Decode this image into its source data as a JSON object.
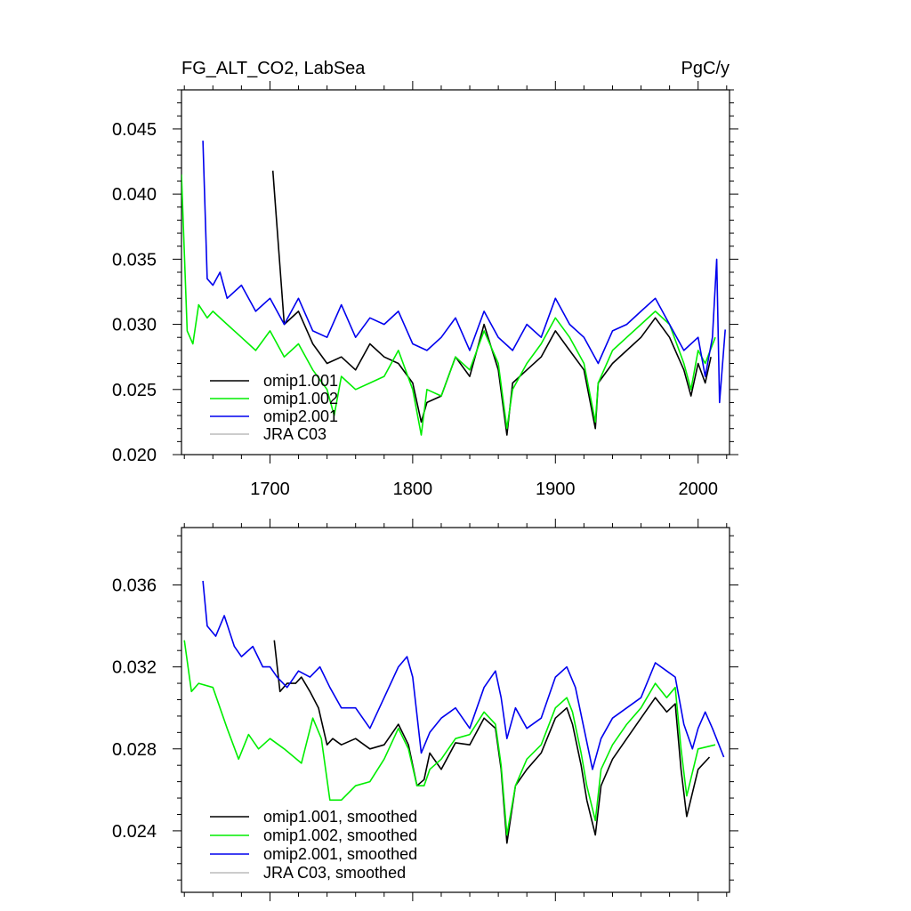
{
  "chart_data": [
    {
      "type": "line",
      "title": "FG_ALT_CO2, LabSea",
      "units": "PgC/y",
      "xlabel": "",
      "ylabel": "",
      "xlim": [
        1638,
        2022
      ],
      "ylim": [
        0.02,
        0.048
      ],
      "x_ticks": [
        1700,
        1800,
        1900,
        2000
      ],
      "y_ticks": [
        0.02,
        0.025,
        0.03,
        0.035,
        0.04,
        0.045
      ],
      "y_tick_labels": [
        "0.020",
        "0.025",
        "0.030",
        "0.035",
        "0.040",
        "0.045"
      ],
      "legend_position": "bottom-left",
      "series": [
        {
          "name": "omip1.001",
          "color": "#000000",
          "x": [
            1702,
            1710,
            1720,
            1730,
            1740,
            1750,
            1760,
            1770,
            1780,
            1790,
            1800,
            1806,
            1810,
            1820,
            1830,
            1840,
            1850,
            1860,
            1866,
            1870,
            1880,
            1890,
            1900,
            1910,
            1920,
            1928,
            1930,
            1940,
            1950,
            1960,
            1970,
            1980,
            1990,
            1995,
            2000,
            2005,
            2009
          ],
          "values": [
            0.0418,
            0.03,
            0.031,
            0.0285,
            0.027,
            0.0275,
            0.0265,
            0.0285,
            0.0275,
            0.027,
            0.0255,
            0.0225,
            0.024,
            0.0245,
            0.0275,
            0.026,
            0.03,
            0.0265,
            0.0215,
            0.0255,
            0.0265,
            0.0275,
            0.0295,
            0.028,
            0.0265,
            0.022,
            0.0255,
            0.027,
            0.028,
            0.029,
            0.0305,
            0.029,
            0.0265,
            0.0245,
            0.027,
            0.0255,
            0.0275
          ]
        },
        {
          "name": "omip1.002",
          "color": "#00ee00",
          "x": [
            1638,
            1642,
            1646,
            1650,
            1656,
            1660,
            1670,
            1680,
            1690,
            1700,
            1710,
            1720,
            1730,
            1740,
            1745,
            1750,
            1760,
            1770,
            1780,
            1790,
            1800,
            1806,
            1810,
            1820,
            1830,
            1840,
            1850,
            1860,
            1866,
            1870,
            1880,
            1890,
            1900,
            1910,
            1920,
            1928,
            1930,
            1940,
            1950,
            1960,
            1970,
            1980,
            1990,
            1995,
            2000,
            2005,
            2012
          ],
          "values": [
            0.0415,
            0.0295,
            0.0285,
            0.0315,
            0.0305,
            0.031,
            0.03,
            0.029,
            0.028,
            0.0295,
            0.0275,
            0.0285,
            0.0265,
            0.025,
            0.023,
            0.026,
            0.025,
            0.0255,
            0.026,
            0.028,
            0.025,
            0.0215,
            0.025,
            0.0245,
            0.0275,
            0.0265,
            0.0295,
            0.027,
            0.022,
            0.025,
            0.027,
            0.0285,
            0.0305,
            0.029,
            0.027,
            0.0225,
            0.0255,
            0.028,
            0.029,
            0.03,
            0.031,
            0.03,
            0.027,
            0.025,
            0.028,
            0.027,
            0.029
          ]
        },
        {
          "name": "omip2.001",
          "color": "#0000ee",
          "x": [
            1653,
            1656,
            1660,
            1665,
            1670,
            1680,
            1690,
            1700,
            1710,
            1720,
            1730,
            1740,
            1750,
            1760,
            1770,
            1780,
            1790,
            1800,
            1810,
            1820,
            1830,
            1840,
            1850,
            1860,
            1870,
            1880,
            1890,
            1900,
            1910,
            1920,
            1930,
            1940,
            1950,
            1960,
            1970,
            1980,
            1990,
            2000,
            2005,
            2010,
            2013,
            2015,
            2019
          ],
          "values": [
            0.0441,
            0.0335,
            0.033,
            0.034,
            0.032,
            0.033,
            0.031,
            0.032,
            0.03,
            0.032,
            0.0295,
            0.029,
            0.0315,
            0.029,
            0.0305,
            0.03,
            0.031,
            0.0285,
            0.028,
            0.029,
            0.0305,
            0.028,
            0.031,
            0.029,
            0.028,
            0.03,
            0.029,
            0.032,
            0.03,
            0.029,
            0.027,
            0.0295,
            0.03,
            0.031,
            0.032,
            0.03,
            0.028,
            0.029,
            0.026,
            0.029,
            0.035,
            0.024,
            0.0296
          ]
        },
        {
          "name": "JRA C03",
          "color": "#bbbbbb",
          "x": [],
          "values": []
        }
      ]
    },
    {
      "type": "line",
      "title": "",
      "units": "",
      "xlabel": "",
      "ylabel": "",
      "xlim": [
        1638,
        2022
      ],
      "ylim": [
        0.021,
        0.0388
      ],
      "x_ticks": [
        1700,
        1800,
        1900,
        2000
      ],
      "y_ticks": [
        0.024,
        0.028,
        0.032,
        0.036
      ],
      "y_tick_labels": [
        "0.024",
        "0.028",
        "0.032",
        "0.036"
      ],
      "legend_position": "bottom-left",
      "series": [
        {
          "name": "omip1.001, smoothed",
          "color": "#000000",
          "x": [
            1703,
            1707,
            1712,
            1718,
            1722,
            1728,
            1734,
            1740,
            1744,
            1750,
            1760,
            1770,
            1780,
            1790,
            1797,
            1803,
            1808,
            1812,
            1820,
            1830,
            1840,
            1850,
            1858,
            1862,
            1866,
            1872,
            1880,
            1890,
            1900,
            1908,
            1912,
            1918,
            1922,
            1928,
            1932,
            1940,
            1950,
            1960,
            1970,
            1978,
            1984,
            1988,
            1992,
            2000,
            2008
          ],
          "values": [
            0.0333,
            0.0308,
            0.0312,
            0.0312,
            0.0315,
            0.0308,
            0.03,
            0.0282,
            0.0285,
            0.0282,
            0.0285,
            0.028,
            0.0282,
            0.0292,
            0.0282,
            0.0262,
            0.0265,
            0.0278,
            0.027,
            0.0283,
            0.0282,
            0.0295,
            0.029,
            0.027,
            0.0234,
            0.0262,
            0.027,
            0.0278,
            0.0295,
            0.03,
            0.0292,
            0.0272,
            0.0255,
            0.0238,
            0.0262,
            0.0275,
            0.0285,
            0.0295,
            0.0305,
            0.0298,
            0.0302,
            0.027,
            0.0247,
            0.027,
            0.0276
          ]
        },
        {
          "name": "omip1.002, smoothed",
          "color": "#00ee00",
          "x": [
            1640,
            1645,
            1650,
            1660,
            1670,
            1678,
            1685,
            1692,
            1700,
            1710,
            1722,
            1730,
            1736,
            1742,
            1750,
            1760,
            1770,
            1780,
            1790,
            1797,
            1803,
            1808,
            1812,
            1820,
            1830,
            1840,
            1850,
            1858,
            1862,
            1866,
            1872,
            1880,
            1890,
            1900,
            1908,
            1912,
            1918,
            1922,
            1928,
            1932,
            1940,
            1950,
            1960,
            1970,
            1978,
            1984,
            1988,
            1992,
            2000,
            2012
          ],
          "values": [
            0.0333,
            0.0308,
            0.0312,
            0.031,
            0.029,
            0.0275,
            0.0287,
            0.028,
            0.0285,
            0.028,
            0.0273,
            0.0295,
            0.0285,
            0.0255,
            0.0255,
            0.0262,
            0.0264,
            0.0275,
            0.029,
            0.028,
            0.0262,
            0.0262,
            0.027,
            0.0275,
            0.0285,
            0.0287,
            0.0298,
            0.0292,
            0.0272,
            0.0238,
            0.0262,
            0.0275,
            0.0282,
            0.03,
            0.0305,
            0.0298,
            0.0278,
            0.0262,
            0.0245,
            0.027,
            0.0282,
            0.0292,
            0.03,
            0.0312,
            0.0305,
            0.031,
            0.028,
            0.0257,
            0.028,
            0.0282
          ]
        },
        {
          "name": "omip2.001, smoothed",
          "color": "#0000ee",
          "x": [
            1653,
            1656,
            1662,
            1668,
            1675,
            1680,
            1688,
            1695,
            1700,
            1705,
            1712,
            1720,
            1728,
            1735,
            1742,
            1750,
            1760,
            1770,
            1780,
            1790,
            1796,
            1800,
            1806,
            1812,
            1820,
            1830,
            1840,
            1850,
            1858,
            1862,
            1866,
            1872,
            1880,
            1890,
            1900,
            1908,
            1914,
            1920,
            1926,
            1932,
            1940,
            1950,
            1960,
            1970,
            1978,
            1984,
            1990,
            1996,
            2000,
            2005,
            2010,
            2018
          ],
          "values": [
            0.0362,
            0.034,
            0.0335,
            0.0345,
            0.033,
            0.0325,
            0.033,
            0.032,
            0.032,
            0.0315,
            0.031,
            0.0318,
            0.0315,
            0.032,
            0.031,
            0.03,
            0.03,
            0.029,
            0.0305,
            0.032,
            0.0325,
            0.0315,
            0.0278,
            0.0288,
            0.0295,
            0.03,
            0.029,
            0.031,
            0.0318,
            0.0305,
            0.0285,
            0.03,
            0.029,
            0.0295,
            0.0315,
            0.032,
            0.031,
            0.029,
            0.027,
            0.0285,
            0.0295,
            0.03,
            0.0305,
            0.0322,
            0.0318,
            0.0315,
            0.0292,
            0.028,
            0.029,
            0.0298,
            0.029,
            0.0276
          ]
        },
        {
          "name": "JRA C03, smoothed",
          "color": "#bbbbbb",
          "x": [],
          "values": []
        }
      ]
    }
  ]
}
